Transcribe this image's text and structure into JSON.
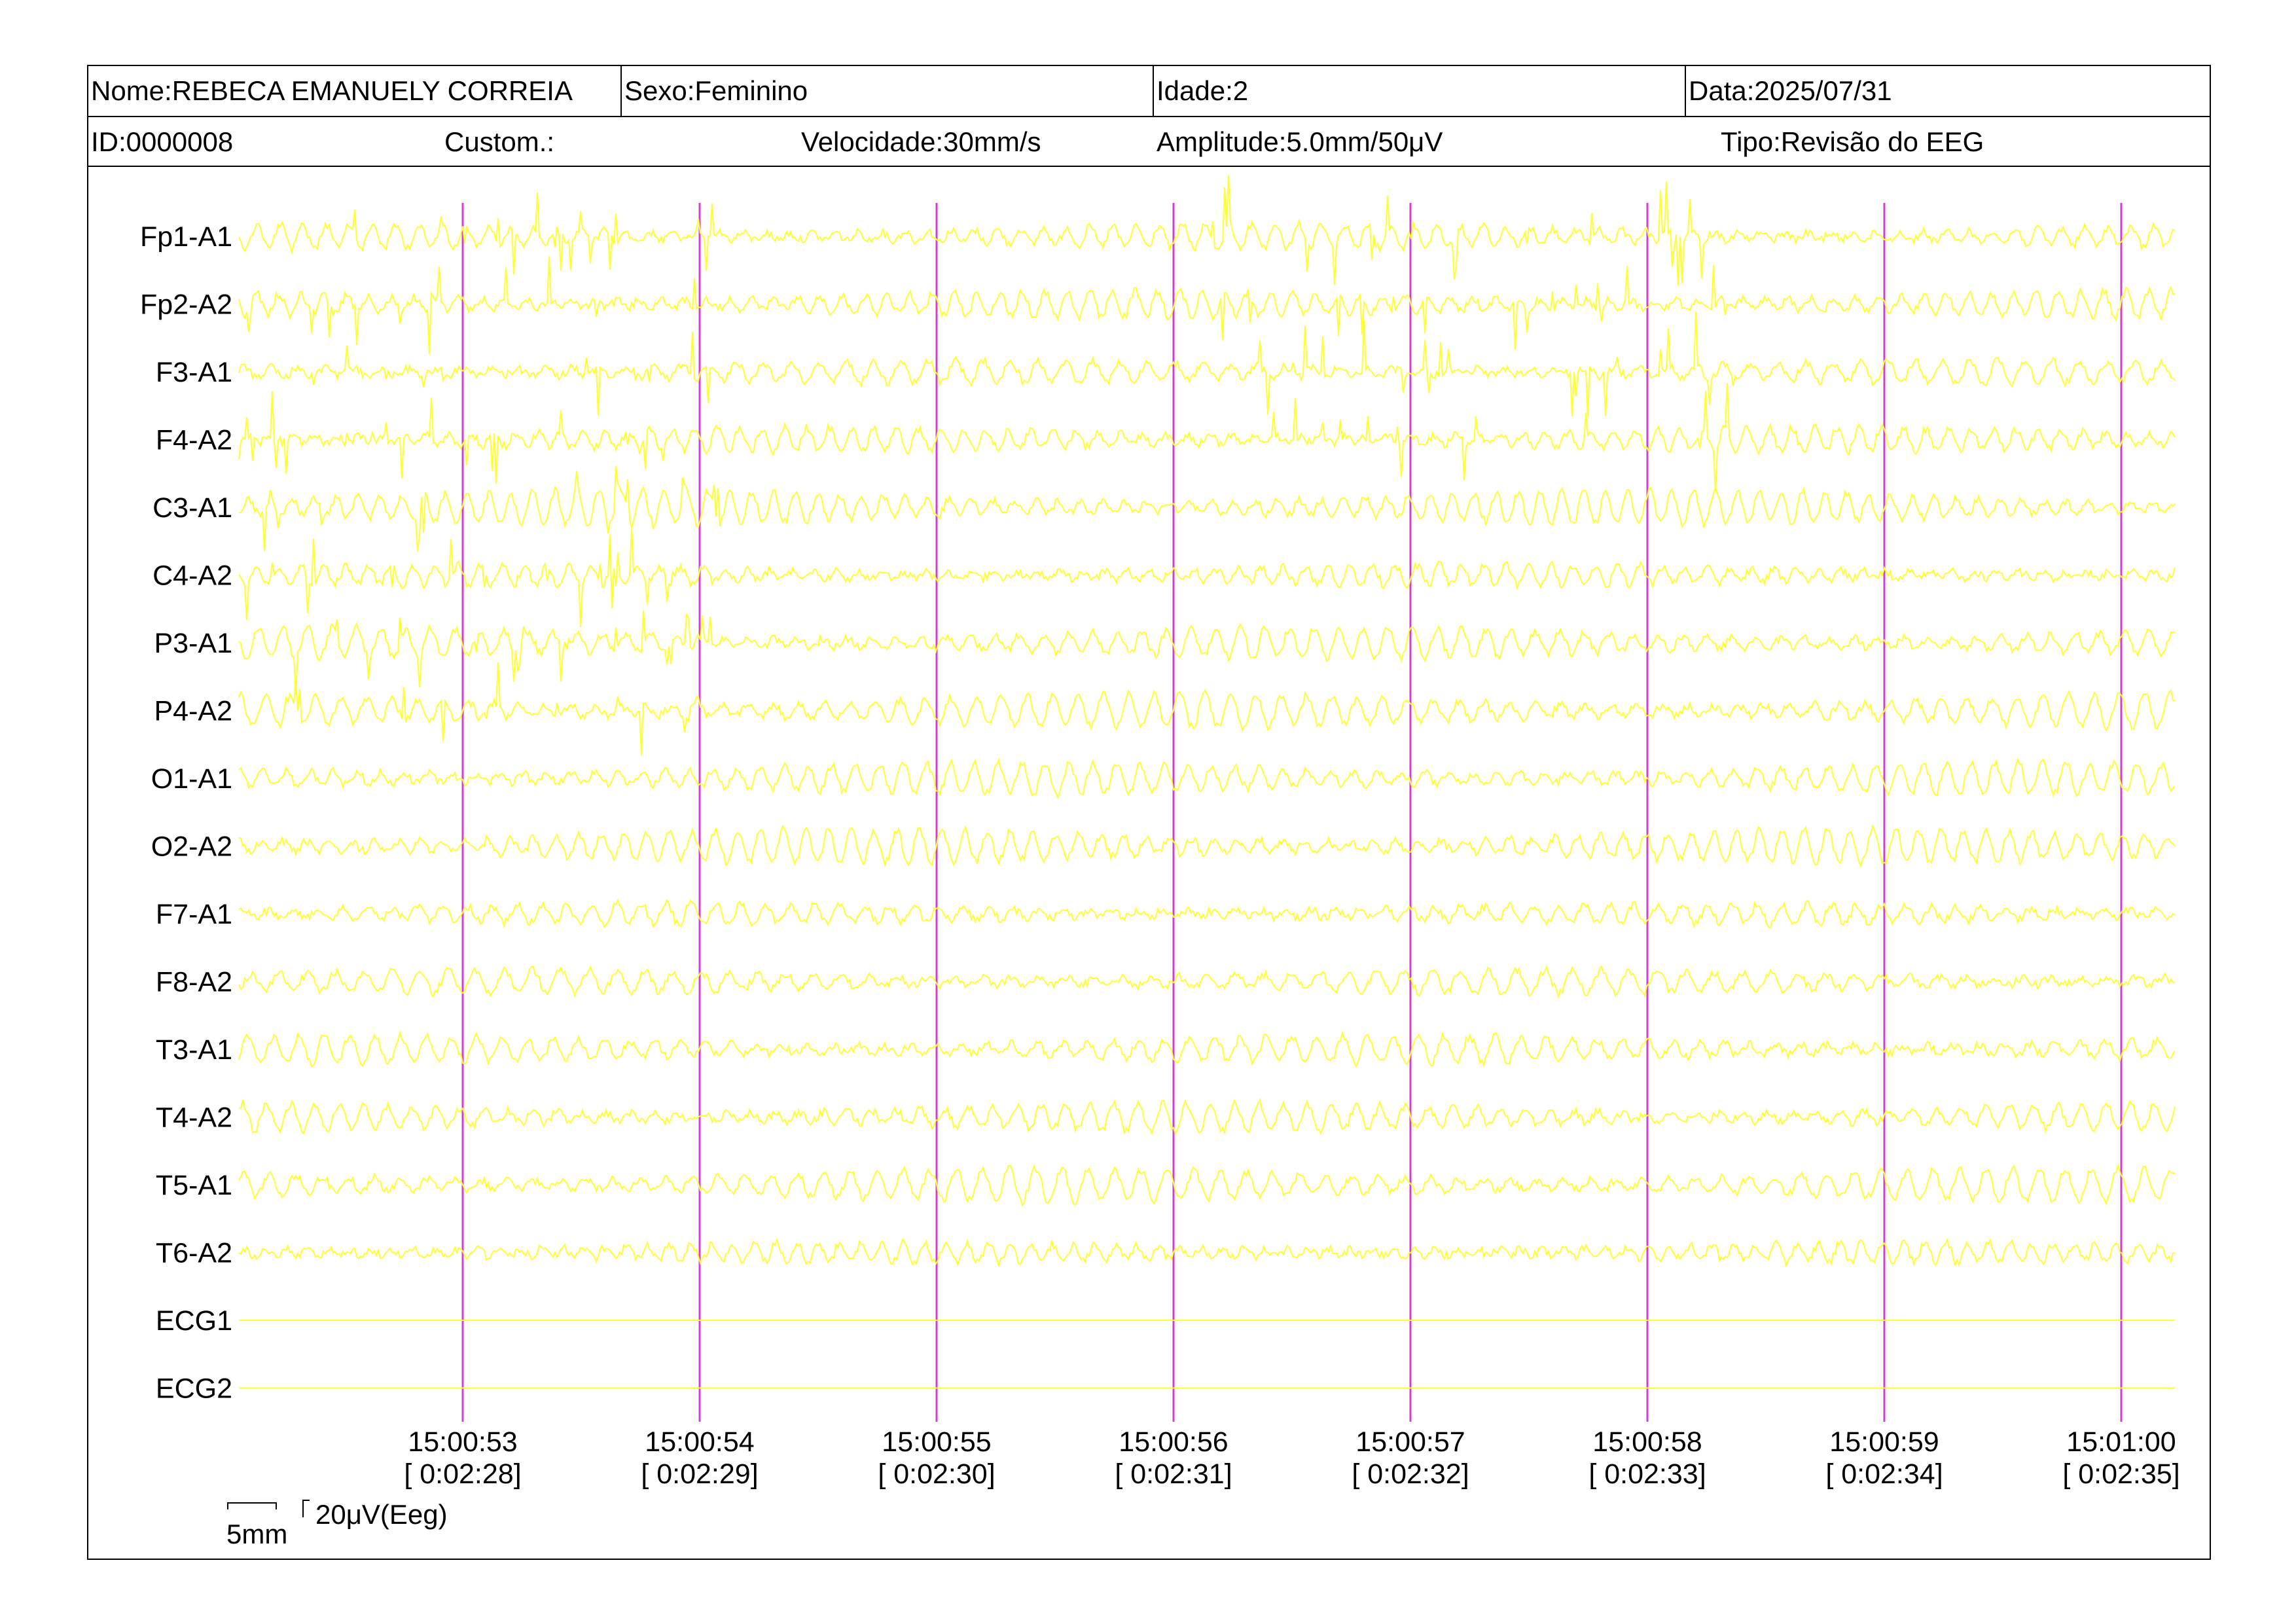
{
  "header": {
    "nome": "Nome:REBECA EMANUELY CORREIA",
    "sexo": "Sexo:Feminino",
    "idade": "Idade:2",
    "data": "Data:2025/07/31",
    "id": "ID:0000008",
    "custom": "Custom.:",
    "velocidade": "Velocidade:30mm/s",
    "amplitude": "Amplitude:5.0mm/50μV",
    "tipo": "Tipo:Revisão do EEG"
  },
  "colors": {
    "trace": "#ffff33",
    "marker": "#d040d0",
    "border": "#000000"
  },
  "chart_data": {
    "type": "line",
    "channels": [
      "Fp1-A1",
      "Fp2-A2",
      "F3-A1",
      "F4-A2",
      "C3-A1",
      "C4-A2",
      "P3-A1",
      "P4-A2",
      "O1-A1",
      "O2-A2",
      "F7-A1",
      "F8-A2",
      "T3-A1",
      "T4-A2",
      "T5-A1",
      "T6-A2",
      "ECG1",
      "ECG2"
    ],
    "time_ticks": [
      {
        "clock": "15:00:53",
        "elapsed": "[ 0:02:28]"
      },
      {
        "clock": "15:00:54",
        "elapsed": "[ 0:02:29]"
      },
      {
        "clock": "15:00:55",
        "elapsed": "[ 0:02:30]"
      },
      {
        "clock": "15:00:56",
        "elapsed": "[ 0:02:31]"
      },
      {
        "clock": "15:00:57",
        "elapsed": "[ 0:02:32]"
      },
      {
        "clock": "15:00:58",
        "elapsed": "[ 0:02:33]"
      },
      {
        "clock": "15:00:59",
        "elapsed": "[ 0:02:34]"
      },
      {
        "clock": "15:01:00",
        "elapsed": "[ 0:02:35]"
      }
    ],
    "scale_time": "5mm",
    "scale_amp": "20μV(Eeg)"
  }
}
